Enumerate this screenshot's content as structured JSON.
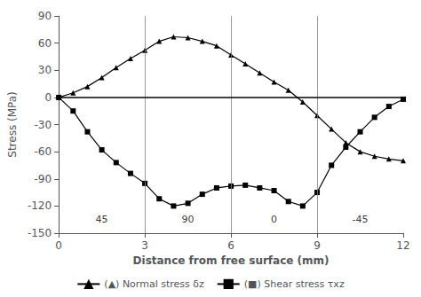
{
  "chart_data": {
    "type": "line",
    "xlabel": "Distance from free surface (mm)",
    "ylabel": "Stress (MPa)",
    "x": [
      0,
      0.5,
      1.0,
      1.5,
      2.0,
      2.5,
      3.0,
      3.5,
      4.0,
      4.5,
      5.0,
      5.5,
      6.0,
      6.5,
      7.0,
      7.5,
      8.0,
      8.5,
      9.0,
      9.5,
      10.0,
      10.5,
      11.0,
      11.5,
      12.0
    ],
    "series": [
      {
        "name": "(▲) Normal stress δz",
        "color": "#000000",
        "marker": "triangle",
        "values": [
          0,
          5,
          12,
          22,
          33,
          43,
          52,
          62,
          67,
          66,
          62,
          57,
          47,
          37,
          27,
          17,
          8,
          -5,
          -20,
          -35,
          -50,
          -60,
          -65,
          -68,
          -70
        ]
      },
      {
        "name": "(■) Shear stress τxz",
        "color": "#000000",
        "marker": "square",
        "values": [
          0,
          -15,
          -38,
          -58,
          -72,
          -84,
          -95,
          -112,
          -120,
          -117,
          -107,
          -100,
          -98,
          -97,
          -100,
          -103,
          -115,
          -120,
          -105,
          -75,
          -55,
          -38,
          -22,
          -10,
          -2
        ]
      }
    ],
    "xlim": [
      0,
      12
    ],
    "ylim": [
      -150,
      90
    ],
    "xticks": [
      0,
      3,
      6,
      9,
      12
    ],
    "yticks": [
      -150,
      -120,
      -90,
      -60,
      -30,
      0,
      30,
      60,
      90
    ],
    "vlines": [
      3,
      6,
      9
    ],
    "hlines": [
      0
    ],
    "annotations": [
      {
        "x": 1.5,
        "y": -135,
        "text": "45"
      },
      {
        "x": 4.5,
        "y": -135,
        "text": "90"
      },
      {
        "x": 7.5,
        "y": -135,
        "text": "0"
      },
      {
        "x": 10.5,
        "y": -135,
        "text": "-45"
      }
    ],
    "grid": false,
    "legend": "bottom"
  }
}
